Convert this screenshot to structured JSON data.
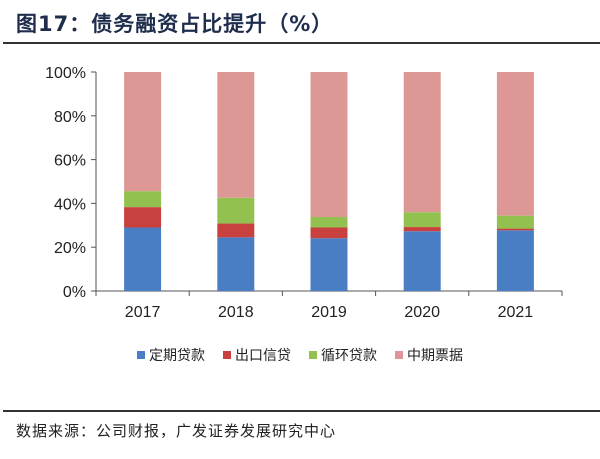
{
  "title": "图17：债务融资占比提升（%）",
  "source": "数据来源：公司财报，广发证券发展研究中心",
  "chart_data": {
    "type": "bar",
    "stacked": true,
    "categories": [
      "2017",
      "2018",
      "2019",
      "2020",
      "2021"
    ],
    "series": [
      {
        "name": "定期贷款",
        "color": "#4a7ec4",
        "values": [
          29.0,
          24.5,
          24.1,
          27.3,
          27.7
        ]
      },
      {
        "name": "出口信贷",
        "color": "#c8413e",
        "values": [
          9.3,
          6.3,
          4.9,
          1.9,
          0.8
        ]
      },
      {
        "name": "循环贷款",
        "color": "#93c14f",
        "values": [
          7.3,
          11.8,
          4.8,
          6.8,
          5.9
        ]
      },
      {
        "name": "中期票据",
        "color": "#dd9896",
        "values": [
          54.4,
          57.4,
          66.2,
          64.0,
          65.6
        ]
      }
    ],
    "yticks": [
      "0%",
      "20%",
      "40%",
      "60%",
      "80%",
      "100%"
    ],
    "ylim": [
      0,
      100
    ],
    "grid": false,
    "legend": "bottom"
  }
}
